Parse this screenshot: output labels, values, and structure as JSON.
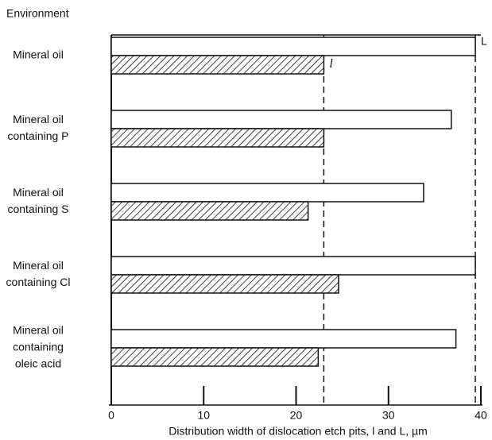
{
  "chart_data": {
    "type": "hbar",
    "y_axis_title": "Environment",
    "x_axis_title": "Distribution width of dislocation etch pits, l and L, µm",
    "categories": [
      [
        "Mineral oil"
      ],
      [
        "Mineral oil",
        "containing P"
      ],
      [
        "Mineral oil",
        "containing S"
      ],
      [
        "Mineral oil",
        "containing Cl"
      ],
      [
        "Mineral oil",
        "containing",
        "oleic acid"
      ]
    ],
    "series": [
      {
        "name": "L",
        "color": "#ffffff",
        "pattern": "none",
        "values": [
          39.4,
          36.8,
          33.8,
          39.4,
          37.3
        ]
      },
      {
        "name": "l",
        "color": "#ffffff",
        "pattern": "hatch",
        "values": [
          23.0,
          23.0,
          21.3,
          24.6,
          22.4
        ]
      }
    ],
    "dashed_lines": [
      39.4,
      23.0
    ],
    "xlim": [
      0,
      40
    ],
    "xticks": [
      0,
      10,
      20,
      30,
      40
    ]
  }
}
